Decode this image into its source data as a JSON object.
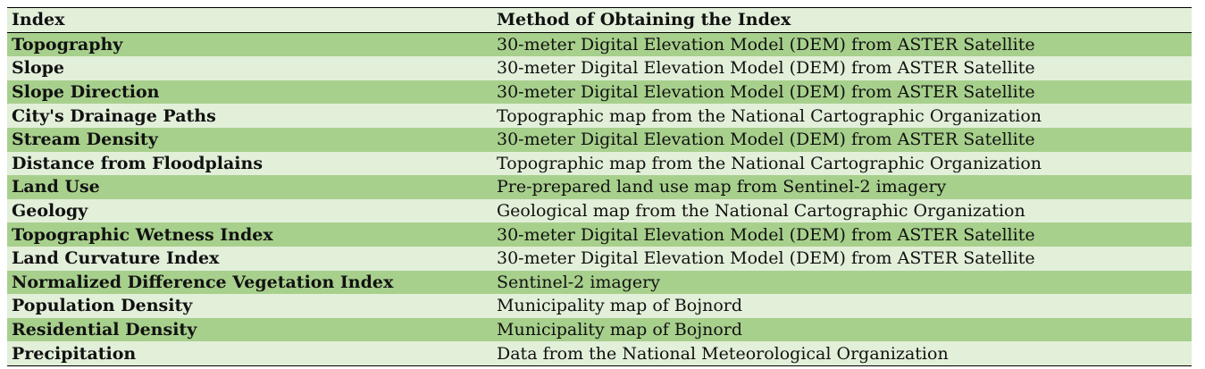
{
  "table": {
    "headers": [
      "Index",
      "Method of Obtaining the Index"
    ],
    "rows": [
      [
        "Topography",
        "30-meter Digital Elevation Model (DEM) from ASTER Satellite"
      ],
      [
        "Slope",
        "30-meter Digital Elevation Model (DEM) from ASTER Satellite"
      ],
      [
        "Slope Direction",
        "30-meter Digital Elevation Model (DEM) from ASTER Satellite"
      ],
      [
        "City's Drainage Paths",
        "Topographic map from the National Cartographic Organization"
      ],
      [
        "Stream Density",
        "30-meter Digital Elevation Model (DEM) from ASTER Satellite"
      ],
      [
        "Distance from Floodplains",
        "Topographic map from the National Cartographic Organization"
      ],
      [
        "Land Use",
        "Pre-prepared land use map from Sentinel-2 imagery"
      ],
      [
        "Geology",
        "Geological map from the National Cartographic Organization"
      ],
      [
        "Topographic Wetness Index",
        "30-meter Digital Elevation Model (DEM) from ASTER Satellite"
      ],
      [
        "Land Curvature Index",
        "30-meter Digital Elevation Model (DEM) from ASTER Satellite"
      ],
      [
        "Normalized Difference Vegetation Index",
        "Sentinel-2 imagery"
      ],
      [
        "Population Density",
        "Municipality map of Bojnord"
      ],
      [
        "Residential Density",
        "Municipality map of Bojnord"
      ],
      [
        "Precipitation",
        "Data from the National Meteorological Organization"
      ]
    ]
  },
  "colors": {
    "row_dark": "#a8d08d",
    "row_light": "#e2efd9",
    "border": "#000000",
    "text": "#111111"
  }
}
